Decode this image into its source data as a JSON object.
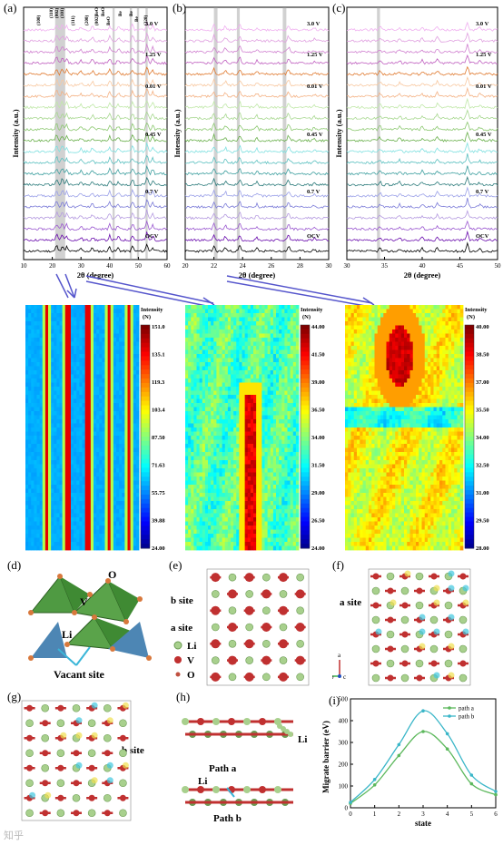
{
  "xrd": {
    "a": {
      "label": "(a)",
      "ylabel": "Intensity (a.u.)",
      "xlabel": "2θ (degree)",
      "xticks": [
        "10",
        "20",
        "30",
        "40",
        "50",
        "60"
      ],
      "peaks": [
        "(100)",
        "(110)",
        "(002)",
        "(101)",
        "(111)",
        "(200)",
        "BeO",
        "BeO",
        "BeO",
        "(002)",
        "Be",
        "Be",
        "Be",
        "(220)"
      ],
      "voltages": [
        "3.0 V",
        "1.25 V",
        "0.01 V",
        "0.45 V",
        "0.7 V",
        "OCV"
      ]
    },
    "b": {
      "label": "(b)",
      "ylabel": "Intensity (a.u.)",
      "xlabel": "2θ (degree)",
      "xticks": [
        "20",
        "22",
        "24",
        "26",
        "28",
        "30"
      ],
      "voltages": [
        "3.0 V",
        "1.25 V",
        "0.01 V",
        "0.45 V",
        "0.7 V",
        "OCV"
      ]
    },
    "c": {
      "label": "(c)",
      "ylabel": "Intensity (a.u.)",
      "xlabel": "2θ (degree)",
      "xticks": [
        "30",
        "35",
        "40",
        "45",
        "50"
      ],
      "voltages": [
        "3.0 V",
        "1.25 V",
        "0.01 V",
        "0.45 V",
        "0.7 V",
        "OCV"
      ]
    }
  },
  "heatmaps": [
    {
      "title1": "Intensity",
      "title2": "(N)",
      "ticks": [
        "151.0",
        "135.1",
        "119.3",
        "103.4",
        "87.50",
        "71.63",
        "55.75",
        "39.88",
        "24.00"
      ]
    },
    {
      "title1": "Intensity",
      "title2": "(N)",
      "ticks": [
        "44.00",
        "41.50",
        "39.00",
        "36.50",
        "34.00",
        "31.50",
        "29.00",
        "26.50",
        "24.00"
      ]
    },
    {
      "title1": "Intensity",
      "title2": "(N)",
      "ticks": [
        "40.00",
        "38.50",
        "37.00",
        "35.50",
        "34.00",
        "32.50",
        "31.00",
        "29.50",
        "28.00"
      ]
    }
  ],
  "structures": {
    "d": {
      "label": "(d)",
      "o": "O",
      "v": "V",
      "li": "Li",
      "vacant": "Vacant site"
    },
    "e": {
      "label": "(e)",
      "bsite": "b site",
      "asite": "a site",
      "li": "Li",
      "v": "V",
      "o": "O"
    },
    "f": {
      "label": "(f)",
      "asite": "a site",
      "axis_a": "a",
      "axis_b": "b",
      "axis_c": "c"
    },
    "g": {
      "label": "(g)",
      "bsite": "b site"
    },
    "h": {
      "label": "(h)",
      "li1": "Li",
      "li2": "Li",
      "patha": "Path a",
      "pathb": "Path b"
    }
  },
  "chart_data": {
    "type": "line",
    "label": "(i)",
    "xlabel": "state",
    "ylabel": "Migrate barrier (eV)",
    "xlim": [
      0,
      6
    ],
    "ylim": [
      0,
      500
    ],
    "xticks": [
      "0",
      "1",
      "2",
      "3",
      "4",
      "5",
      "6"
    ],
    "yticks": [
      "0",
      "100",
      "200",
      "300",
      "400",
      "500"
    ],
    "x": [
      0,
      1,
      2,
      3,
      4,
      5,
      6
    ],
    "series": [
      {
        "name": "path a",
        "color": "#5cb85c",
        "values": [
          20,
          105,
          240,
          350,
          270,
          110,
          60
        ]
      },
      {
        "name": "path b",
        "color": "#3ab6c8",
        "values": [
          25,
          130,
          290,
          445,
          340,
          150,
          75
        ]
      }
    ],
    "legend": "top-right"
  },
  "watermark": "知乎"
}
